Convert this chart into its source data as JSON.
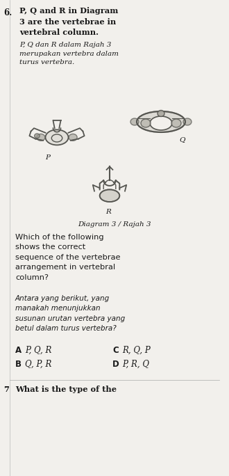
{
  "background_color": "#f2f0ec",
  "question_number": "6.",
  "title_en": "P, Q and R in Diagram\n3 are the vertebrae in\nvertebral column.",
  "title_ms": "P, Q dan R dalam Rajah 3\nmerupakan vertebra dalam\nturus vertebra.",
  "diagram_label": "Diagram 3 / Rajah 3",
  "question_en": "Which of the following\nshows the correct\nsequence of the vertebrae\narrangement in vertebral\ncolumn?",
  "question_ms": "Antara yang berikut, yang\nmanakah menunjukkan\nsusunan urutan vertebra yang\nbetul dalam turus vertebra?",
  "label_P": "P",
  "label_Q": "Q",
  "label_R": "R",
  "footer_text": "7   What is the type of the",
  "vertebra_color": "#555550",
  "text_color": "#1a1a1a",
  "font_size_en": 8.2,
  "font_size_ms": 7.5,
  "font_size_options": 8.5,
  "font_size_qnum": 8.5,
  "font_size_label": 7.5,
  "font_size_diagram": 7.5,
  "font_size_footer": 8.2
}
